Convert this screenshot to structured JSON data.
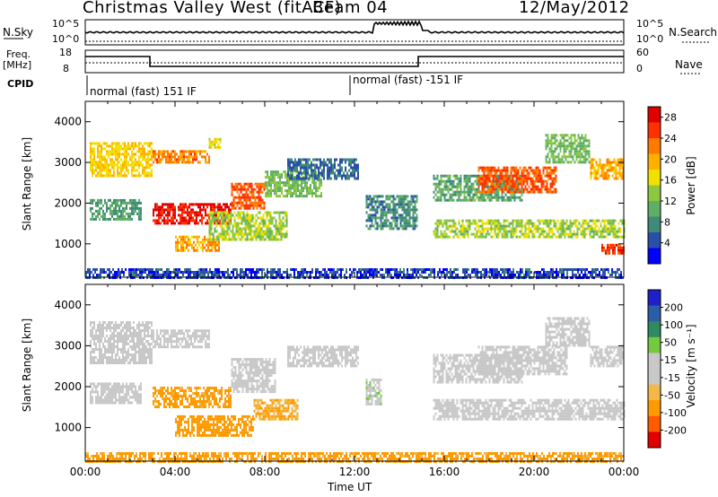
{
  "header": {
    "station": "Christmas Valley West (fitACF)",
    "beam": "Beam 04",
    "date": "12/May/2012"
  },
  "top_panel": {
    "nsky_label": "N.Sky",
    "nsky_tick_top": "10^5",
    "nsky_tick_bottom": "10^0",
    "nsearch_label": "N.Search",
    "nsearch_tick_top": "10^5",
    "nsearch_tick_bottom": "10^0",
    "freq_label": "Freq.",
    "freq_unit": "[MHz]",
    "freq_tick_top": "18",
    "freq_tick_bottom": "8",
    "nave_label": "Nave",
    "nave_tick_top": "60",
    "nave_tick_bottom": "0",
    "cpid_label": "CPID",
    "cpid_segments": [
      "normal (fast) 151 IF",
      "normal (fast) -151 IF"
    ]
  },
  "colors": {
    "power_scale": [
      "#0000ff",
      "#2a4fa8",
      "#3f8a78",
      "#5fae68",
      "#8dc73f",
      "#f2e000",
      "#ffb000",
      "#ff7a00",
      "#ff3000",
      "#e00000"
    ],
    "velocity_scale": [
      "#e00000",
      "#ff5a00",
      "#ff9a00",
      "#f2b84a",
      "#c8c8c8",
      "#c8c8c8",
      "#73c940",
      "#2e8a60",
      "#2a5fa8",
      "#2020c8"
    ]
  },
  "chart_data": [
    {
      "type": "heatmap",
      "name": "power",
      "ylabel": "Slant Range [km]",
      "x_ticks": [
        "00:00",
        "04:00",
        "08:00",
        "12:00",
        "16:00",
        "20:00",
        "00:00"
      ],
      "y_ticks": [
        1000,
        2000,
        3000,
        4000
      ],
      "ylim": [
        180,
        4500
      ],
      "xlim_hours": [
        0,
        24
      ],
      "colorbar_label": "Power [dB]",
      "colorbar_ticks": [
        4,
        8,
        12,
        16,
        20,
        24,
        28
      ],
      "colorbar_range": [
        0,
        30
      ],
      "bands": [
        {
          "t0": 0.2,
          "t1": 3.0,
          "r0": 2700,
          "r1": 3500,
          "level": 18
        },
        {
          "t0": 0.2,
          "t1": 2.5,
          "r0": 1600,
          "r1": 2100,
          "level": 9
        },
        {
          "t0": 3.0,
          "t1": 5.5,
          "r0": 3000,
          "r1": 3300,
          "level": 22
        },
        {
          "t0": 5.5,
          "t1": 6.0,
          "r0": 3400,
          "r1": 3600,
          "level": 16
        },
        {
          "t0": 3.0,
          "t1": 6.5,
          "r0": 1500,
          "r1": 2000,
          "level": 28
        },
        {
          "t0": 6.5,
          "t1": 8.0,
          "r0": 1900,
          "r1": 2500,
          "level": 24
        },
        {
          "t0": 8.0,
          "t1": 10.5,
          "r0": 2200,
          "r1": 2800,
          "level": 12
        },
        {
          "t0": 4.0,
          "t1": 6.0,
          "r0": 850,
          "r1": 1200,
          "level": 20
        },
        {
          "t0": 5.5,
          "t1": 9.0,
          "r0": 1100,
          "r1": 1800,
          "level": 14
        },
        {
          "t0": 9.0,
          "t1": 12.2,
          "r0": 2600,
          "r1": 3100,
          "level": 6
        },
        {
          "t0": 12.5,
          "t1": 14.8,
          "r0": 1400,
          "r1": 2200,
          "level": 8
        },
        {
          "t0": 15.5,
          "t1": 19.5,
          "r0": 2100,
          "r1": 2700,
          "level": 10
        },
        {
          "t0": 15.5,
          "t1": 24.0,
          "r0": 1200,
          "r1": 1600,
          "level": 14
        },
        {
          "t0": 17.5,
          "t1": 21.0,
          "r0": 2300,
          "r1": 2900,
          "level": 24
        },
        {
          "t0": 20.5,
          "t1": 22.5,
          "r0": 3000,
          "r1": 3700,
          "level": 12
        },
        {
          "t0": 22.5,
          "t1": 24.0,
          "r0": 2600,
          "r1": 3100,
          "level": 20
        },
        {
          "t0": 23.0,
          "t1": 24.0,
          "r0": 750,
          "r1": 1000,
          "level": 26
        },
        {
          "t0": 0.0,
          "t1": 24.0,
          "r0": 200,
          "r1": 400,
          "level": 4
        }
      ]
    },
    {
      "type": "heatmap",
      "name": "velocity",
      "ylabel": "Slant Range [km]",
      "xlabel": "Time UT",
      "x_ticks": [
        "00:00",
        "04:00",
        "08:00",
        "12:00",
        "16:00",
        "20:00",
        "00:00"
      ],
      "y_ticks": [
        1000,
        2000,
        3000,
        4000
      ],
      "ylim": [
        180,
        4500
      ],
      "xlim_hours": [
        0,
        24
      ],
      "colorbar_label": "Velocity [m s⁻¹]",
      "colorbar_ticks": [
        200,
        100,
        50,
        15,
        -15,
        -50,
        -100,
        -200
      ],
      "colorbar_range": [
        -250,
        250
      ],
      "bands": [
        {
          "t0": 0.2,
          "t1": 3.0,
          "r0": 2600,
          "r1": 3600,
          "level": 0
        },
        {
          "t0": 0.2,
          "t1": 2.5,
          "r0": 1600,
          "r1": 2100,
          "level": 0
        },
        {
          "t0": 3.0,
          "t1": 5.5,
          "r0": 3000,
          "r1": 3400,
          "level": 0
        },
        {
          "t0": 3.0,
          "t1": 6.5,
          "r0": 1500,
          "r1": 2000,
          "level": -60
        },
        {
          "t0": 6.5,
          "t1": 8.5,
          "r0": 1900,
          "r1": 2700,
          "level": 0
        },
        {
          "t0": 4.0,
          "t1": 7.5,
          "r0": 800,
          "r1": 1300,
          "level": -70
        },
        {
          "t0": 7.5,
          "t1": 9.5,
          "r0": 1200,
          "r1": 1700,
          "level": -50
        },
        {
          "t0": 9.0,
          "t1": 12.2,
          "r0": 2500,
          "r1": 3000,
          "level": 0
        },
        {
          "t0": 12.5,
          "t1": 13.2,
          "r0": 1600,
          "r1": 2200,
          "level": 40
        },
        {
          "t0": 15.5,
          "t1": 24.0,
          "r0": 1200,
          "r1": 1700,
          "level": 0
        },
        {
          "t0": 15.5,
          "t1": 19.5,
          "r0": 2100,
          "r1": 2800,
          "level": 0
        },
        {
          "t0": 17.5,
          "t1": 21.5,
          "r0": 2300,
          "r1": 3000,
          "level": 0
        },
        {
          "t0": 20.5,
          "t1": 22.5,
          "r0": 3000,
          "r1": 3700,
          "level": 0
        },
        {
          "t0": 22.5,
          "t1": 24.0,
          "r0": 2500,
          "r1": 3000,
          "level": 0
        },
        {
          "t0": 0.0,
          "t1": 24.0,
          "r0": 200,
          "r1": 400,
          "level": -60
        }
      ]
    }
  ]
}
